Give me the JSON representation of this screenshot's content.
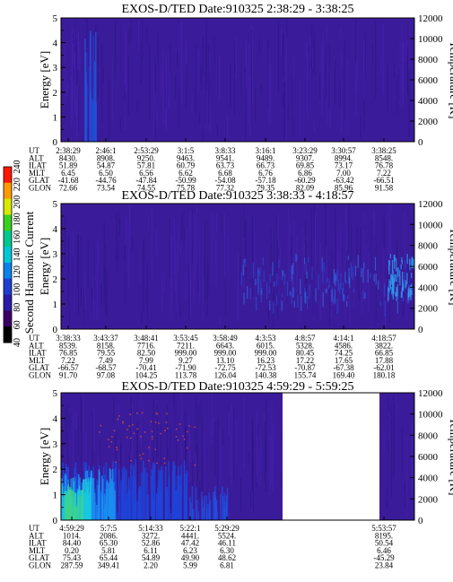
{
  "colorbar": {
    "label": "Second Harmonic Current",
    "ticks": [
      "40",
      "60",
      "80",
      "100",
      "120",
      "140",
      "160",
      "180",
      "200",
      "220",
      "240"
    ],
    "colors": [
      "#000000",
      "#3a0066",
      "#2a1ca8",
      "#1e3ed0",
      "#0a82ea",
      "#00c8d8",
      "#00c890",
      "#3ad020",
      "#d8e800",
      "#ff9a00",
      "#ff1800"
    ]
  },
  "chart_data": [
    {
      "type": "heatmap",
      "title": "EXOS-D/TED   Date:910325  2:38:29 - 3:38:25",
      "ylabel": "Energy [eV]",
      "y2label": "Temperature [K]",
      "ylim": [
        0,
        5
      ],
      "y2lim": [
        0,
        12000
      ],
      "yticks": [
        "0",
        "1",
        "2",
        "3",
        "4",
        "5"
      ],
      "y2ticks": [
        "0",
        "2000",
        "4000",
        "6000",
        "8000",
        "10000",
        "12000"
      ],
      "background_color": "#3a1c9a",
      "orbit_rows": [
        {
          "label": "UT",
          "values": [
            "2:38:29",
            "2:46:1",
            "2:53:29",
            "3:1:5",
            "3:8:33",
            "3:16:1",
            "3:23:29",
            "3:30:57",
            "3:38:25"
          ]
        },
        {
          "label": "ALT",
          "values": [
            "8430.",
            "8908.",
            "9250.",
            "9463.",
            "9541.",
            "9489.",
            "9307.",
            "8994.",
            "8548."
          ]
        },
        {
          "label": "ILAT",
          "values": [
            "51.89",
            "54.87",
            "57.81",
            "60.79",
            "63.73",
            "66.73",
            "69.85",
            "73.17",
            "76.78"
          ]
        },
        {
          "label": "MLT",
          "values": [
            "6.45",
            "6.50",
            "6.56",
            "6.62",
            "6.68",
            "6.76",
            "6.86",
            "7.00",
            "7.22"
          ]
        },
        {
          "label": "GLAT",
          "values": [
            "-41.68",
            "-44.76",
            "-47.84",
            "-50.99",
            "-54.08",
            "-57.18",
            "-60.29",
            "-63.42",
            "-66.51"
          ]
        },
        {
          "label": "GLON",
          "values": [
            "72.66",
            "73.54",
            "74.55",
            "75.78",
            "77.32",
            "79.35",
            "82.09",
            "85.96",
            "91.58"
          ]
        }
      ]
    },
    {
      "type": "heatmap",
      "title": "EXOS-D/TED   Date:910325  3:38:33 - 4:18:57",
      "ylabel": "Energy [eV]",
      "y2label": "Temperature [K]",
      "ylim": [
        0,
        5
      ],
      "y2lim": [
        0,
        12000
      ],
      "yticks": [
        "0",
        "1",
        "2",
        "3",
        "4",
        "5"
      ],
      "y2ticks": [
        "0",
        "2000",
        "4000",
        "6000",
        "8000",
        "10000",
        "12000"
      ],
      "background_color": "#3a1c9a",
      "orbit_rows": [
        {
          "label": "UT",
          "values": [
            "3:38:33",
            "3:43:37",
            "3:48:41",
            "3:53:45",
            "3:58:49",
            "4:3:53",
            "4:8:57",
            "4:14:1",
            "4:18:57"
          ]
        },
        {
          "label": "ALT",
          "values": [
            "8539.",
            "8158.",
            "7716.",
            "7211.",
            "6643.",
            "6015.",
            "5328.",
            "4586.",
            "3822."
          ]
        },
        {
          "label": "ILAT",
          "values": [
            "76.85",
            "79.55",
            "82.50",
            "999.00",
            "999.00",
            "999.00",
            "80.45",
            "74.25",
            "66.85"
          ]
        },
        {
          "label": "MLT",
          "values": [
            "7.22",
            "7.49",
            "7.99",
            "9.27",
            "13.10",
            "16.23",
            "17.22",
            "17.65",
            "17.88"
          ]
        },
        {
          "label": "GLAT",
          "values": [
            "-66.57",
            "-68.57",
            "-70.41",
            "-71.90",
            "-72.75",
            "-72.53",
            "-70.87",
            "-67.38",
            "-62.01"
          ]
        },
        {
          "label": "GLON",
          "values": [
            "91.70",
            "97.08",
            "104.25",
            "113.78",
            "126.04",
            "140.38",
            "155.74",
            "169.40",
            "180.18"
          ]
        }
      ]
    },
    {
      "type": "heatmap",
      "title": "EXOS-D/TED   Date:910325  4:59:29 - 5:59:25",
      "ylabel": "Energy [eV]",
      "y2label": "Temperature [K]",
      "ylim": [
        0,
        5
      ],
      "y2lim": [
        0,
        12000
      ],
      "yticks": [
        "0",
        "1",
        "2",
        "3",
        "4",
        "5"
      ],
      "y2ticks": [
        "0",
        "2000",
        "4000",
        "6000",
        "8000",
        "10000",
        "12000"
      ],
      "background_color": "#3a1c9a",
      "orbit_rows": [
        {
          "label": "UT",
          "values": [
            "4:59:29",
            "5:7:5",
            "5:14:33",
            "5:22:1",
            "5:29:29",
            "5:53:57"
          ]
        },
        {
          "label": "ALT",
          "values": [
            "1014.",
            "2086.",
            "3272.",
            "4441.",
            "5524.",
            "8195."
          ]
        },
        {
          "label": "ILAT",
          "values": [
            "84.40",
            "65.30",
            "52.86",
            "47.42",
            "46.11",
            "50.54"
          ]
        },
        {
          "label": "MLT",
          "values": [
            "0.20",
            "5.81",
            "6.11",
            "6.23",
            "6.30",
            "6.46"
          ]
        },
        {
          "label": "GLAT",
          "values": [
            "75.43",
            "65.44",
            "54.89",
            "49.90",
            "48.62",
            "-45.29"
          ]
        },
        {
          "label": "GLON",
          "values": [
            "287.59",
            "349.41",
            "2.20",
            "5.99",
            "6.81",
            "23.84"
          ]
        }
      ]
    }
  ]
}
